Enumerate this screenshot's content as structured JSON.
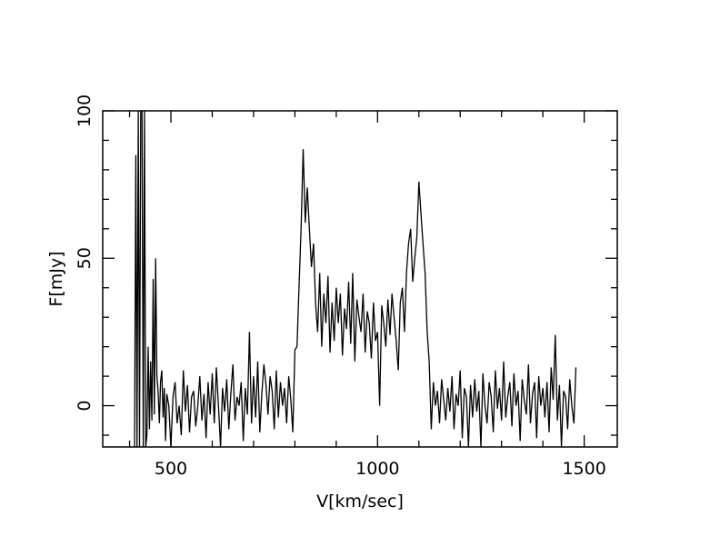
{
  "chart_data": {
    "type": "line",
    "xlabel": "V[km/sec]",
    "ylabel": "F[mJy]",
    "xlim": [
      335,
      1580
    ],
    "ylim": [
      -14,
      100
    ],
    "x_ticks": [
      500,
      1000,
      1500
    ],
    "y_ticks": [
      0,
      50,
      100
    ],
    "x_tick_labels": [
      "500",
      "1000",
      "1500"
    ],
    "y_tick_labels": [
      "0",
      "50",
      "100"
    ],
    "grid": false,
    "series": [
      {
        "color": "#000000",
        "x": [
          412,
          415,
          418,
          421,
          424,
          427,
          430,
          433,
          436,
          439,
          442,
          445,
          448,
          451,
          454,
          457,
          460,
          463,
          466,
          469,
          472,
          475,
          478,
          481,
          484,
          487,
          490,
          495,
          500,
          505,
          510,
          515,
          520,
          525,
          530,
          535,
          540,
          545,
          550,
          555,
          560,
          565,
          570,
          575,
          580,
          585,
          590,
          595,
          600,
          605,
          610,
          615,
          620,
          625,
          630,
          635,
          640,
          645,
          650,
          655,
          660,
          665,
          670,
          675,
          680,
          685,
          690,
          695,
          700,
          705,
          710,
          715,
          720,
          725,
          730,
          735,
          740,
          745,
          750,
          755,
          760,
          765,
          770,
          775,
          780,
          785,
          790,
          795,
          800,
          805,
          810,
          815,
          820,
          825,
          830,
          835,
          840,
          845,
          850,
          855,
          860,
          865,
          870,
          875,
          880,
          885,
          890,
          895,
          900,
          905,
          910,
          915,
          920,
          925,
          930,
          935,
          940,
          945,
          950,
          955,
          960,
          965,
          970,
          975,
          980,
          985,
          990,
          995,
          1000,
          1005,
          1010,
          1015,
          1020,
          1025,
          1030,
          1035,
          1040,
          1045,
          1050,
          1055,
          1060,
          1065,
          1070,
          1075,
          1080,
          1085,
          1090,
          1095,
          1100,
          1105,
          1110,
          1115,
          1120,
          1125,
          1130,
          1135,
          1140,
          1145,
          1150,
          1155,
          1160,
          1165,
          1170,
          1175,
          1180,
          1185,
          1190,
          1195,
          1200,
          1205,
          1210,
          1215,
          1220,
          1225,
          1230,
          1235,
          1240,
          1245,
          1250,
          1255,
          1260,
          1265,
          1270,
          1275,
          1280,
          1285,
          1290,
          1295,
          1300,
          1305,
          1310,
          1315,
          1320,
          1325,
          1330,
          1335,
          1340,
          1345,
          1350,
          1355,
          1360,
          1365,
          1370,
          1375,
          1380,
          1385,
          1390,
          1395,
          1400,
          1405,
          1410,
          1415,
          1420,
          1425,
          1430,
          1435,
          1440,
          1445,
          1450,
          1455,
          1460,
          1465,
          1470,
          1475,
          1480
        ],
        "y": [
          -14,
          85,
          -14,
          110,
          -14,
          110,
          110,
          -14,
          110,
          -14,
          -10,
          20,
          -8,
          15,
          -5,
          43,
          -3,
          50,
          10,
          5,
          -6,
          8,
          12,
          -4,
          6,
          -12,
          4,
          0,
          -14,
          3,
          8,
          -6,
          0,
          -10,
          12,
          -2,
          7,
          -9,
          3,
          5,
          -7,
          0,
          10,
          -5,
          4,
          -11,
          8,
          -3,
          11,
          -6,
          13,
          0,
          -14,
          6,
          -2,
          9,
          -8,
          4,
          14,
          -5,
          3,
          0,
          8,
          -12,
          6,
          -3,
          25,
          -6,
          10,
          -4,
          15,
          -9,
          4,
          14,
          7,
          -3,
          10,
          5,
          -8,
          12,
          -4,
          8,
          0,
          6,
          -6,
          10,
          2,
          -9,
          19,
          20,
          40,
          60,
          87,
          62,
          74,
          60,
          47,
          55,
          35,
          25,
          45,
          20,
          38,
          28,
          44,
          18,
          35,
          22,
          40,
          28,
          38,
          17,
          33,
          26,
          42,
          21,
          45,
          15,
          36,
          30,
          25,
          38,
          18,
          32,
          28,
          16,
          35,
          22,
          25,
          0,
          34,
          28,
          20,
          36,
          24,
          38,
          30,
          22,
          12,
          35,
          40,
          25,
          45,
          55,
          60,
          42,
          50,
          57,
          76,
          65,
          55,
          45,
          25,
          15,
          -8,
          8,
          0,
          5,
          -6,
          9,
          2,
          -5,
          6,
          -2,
          10,
          -8,
          4,
          0,
          12,
          -11,
          6,
          3,
          -14,
          7,
          -4,
          9,
          -2,
          5,
          -14,
          11,
          0,
          -6,
          8,
          3,
          -9,
          12,
          -1,
          6,
          -5,
          15,
          -4,
          3,
          8,
          -7,
          11,
          0,
          5,
          -12,
          9,
          2,
          -3,
          14,
          -6,
          4,
          8,
          -11,
          10,
          0,
          6,
          -4,
          8,
          -9,
          13,
          2,
          24,
          -5,
          7,
          -14,
          5,
          3,
          -8,
          9,
          0,
          -6,
          13
        ]
      }
    ]
  }
}
